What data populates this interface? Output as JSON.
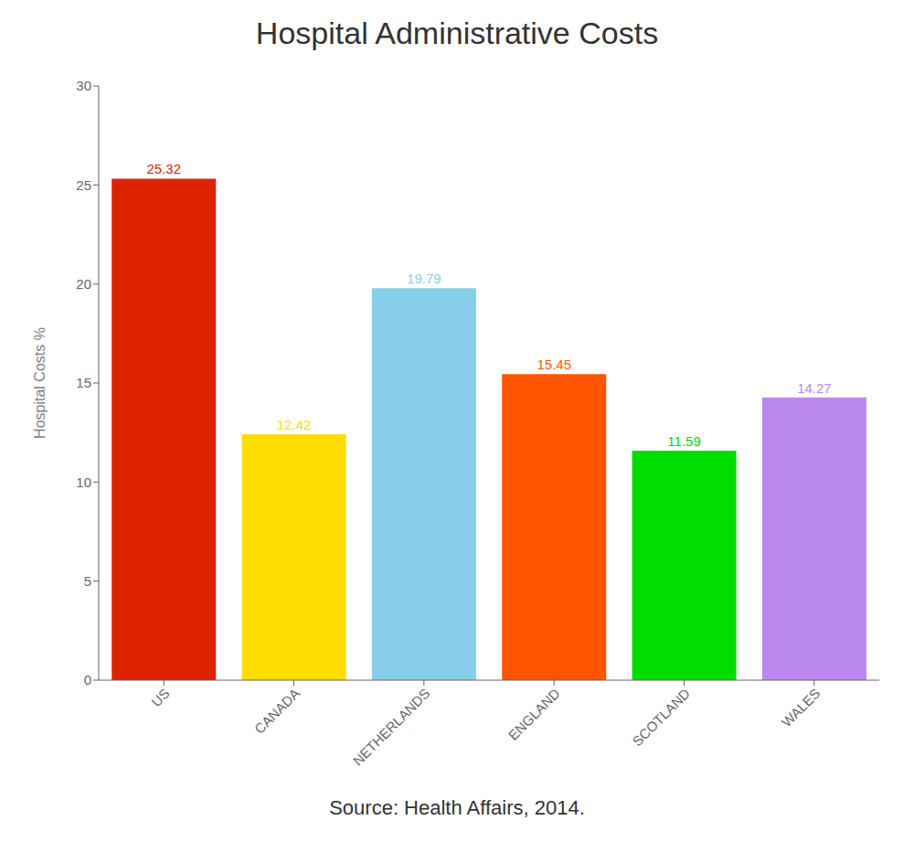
{
  "chart_data": {
    "type": "bar",
    "title": "Hospital Administrative Costs",
    "ylabel": "Hospital Costs %",
    "annotations": [
      "Source: Health Affairs, 2014."
    ],
    "categories": [
      "US",
      "CANADA",
      "NETHERLANDS",
      "ENGLAND",
      "SCOTLAND",
      "WALES"
    ],
    "values": [
      25.32,
      12.42,
      19.79,
      15.45,
      11.59,
      14.27
    ],
    "colors": [
      "#dd2200",
      "#ffdd00",
      "#87ceeb",
      "#ff5500",
      "#00dd00",
      "#bb88ee"
    ],
    "ylim": [
      0,
      30
    ],
    "yticks": [
      0,
      5,
      10,
      15,
      20,
      25,
      30
    ],
    "grid": false,
    "data_labels": true
  }
}
